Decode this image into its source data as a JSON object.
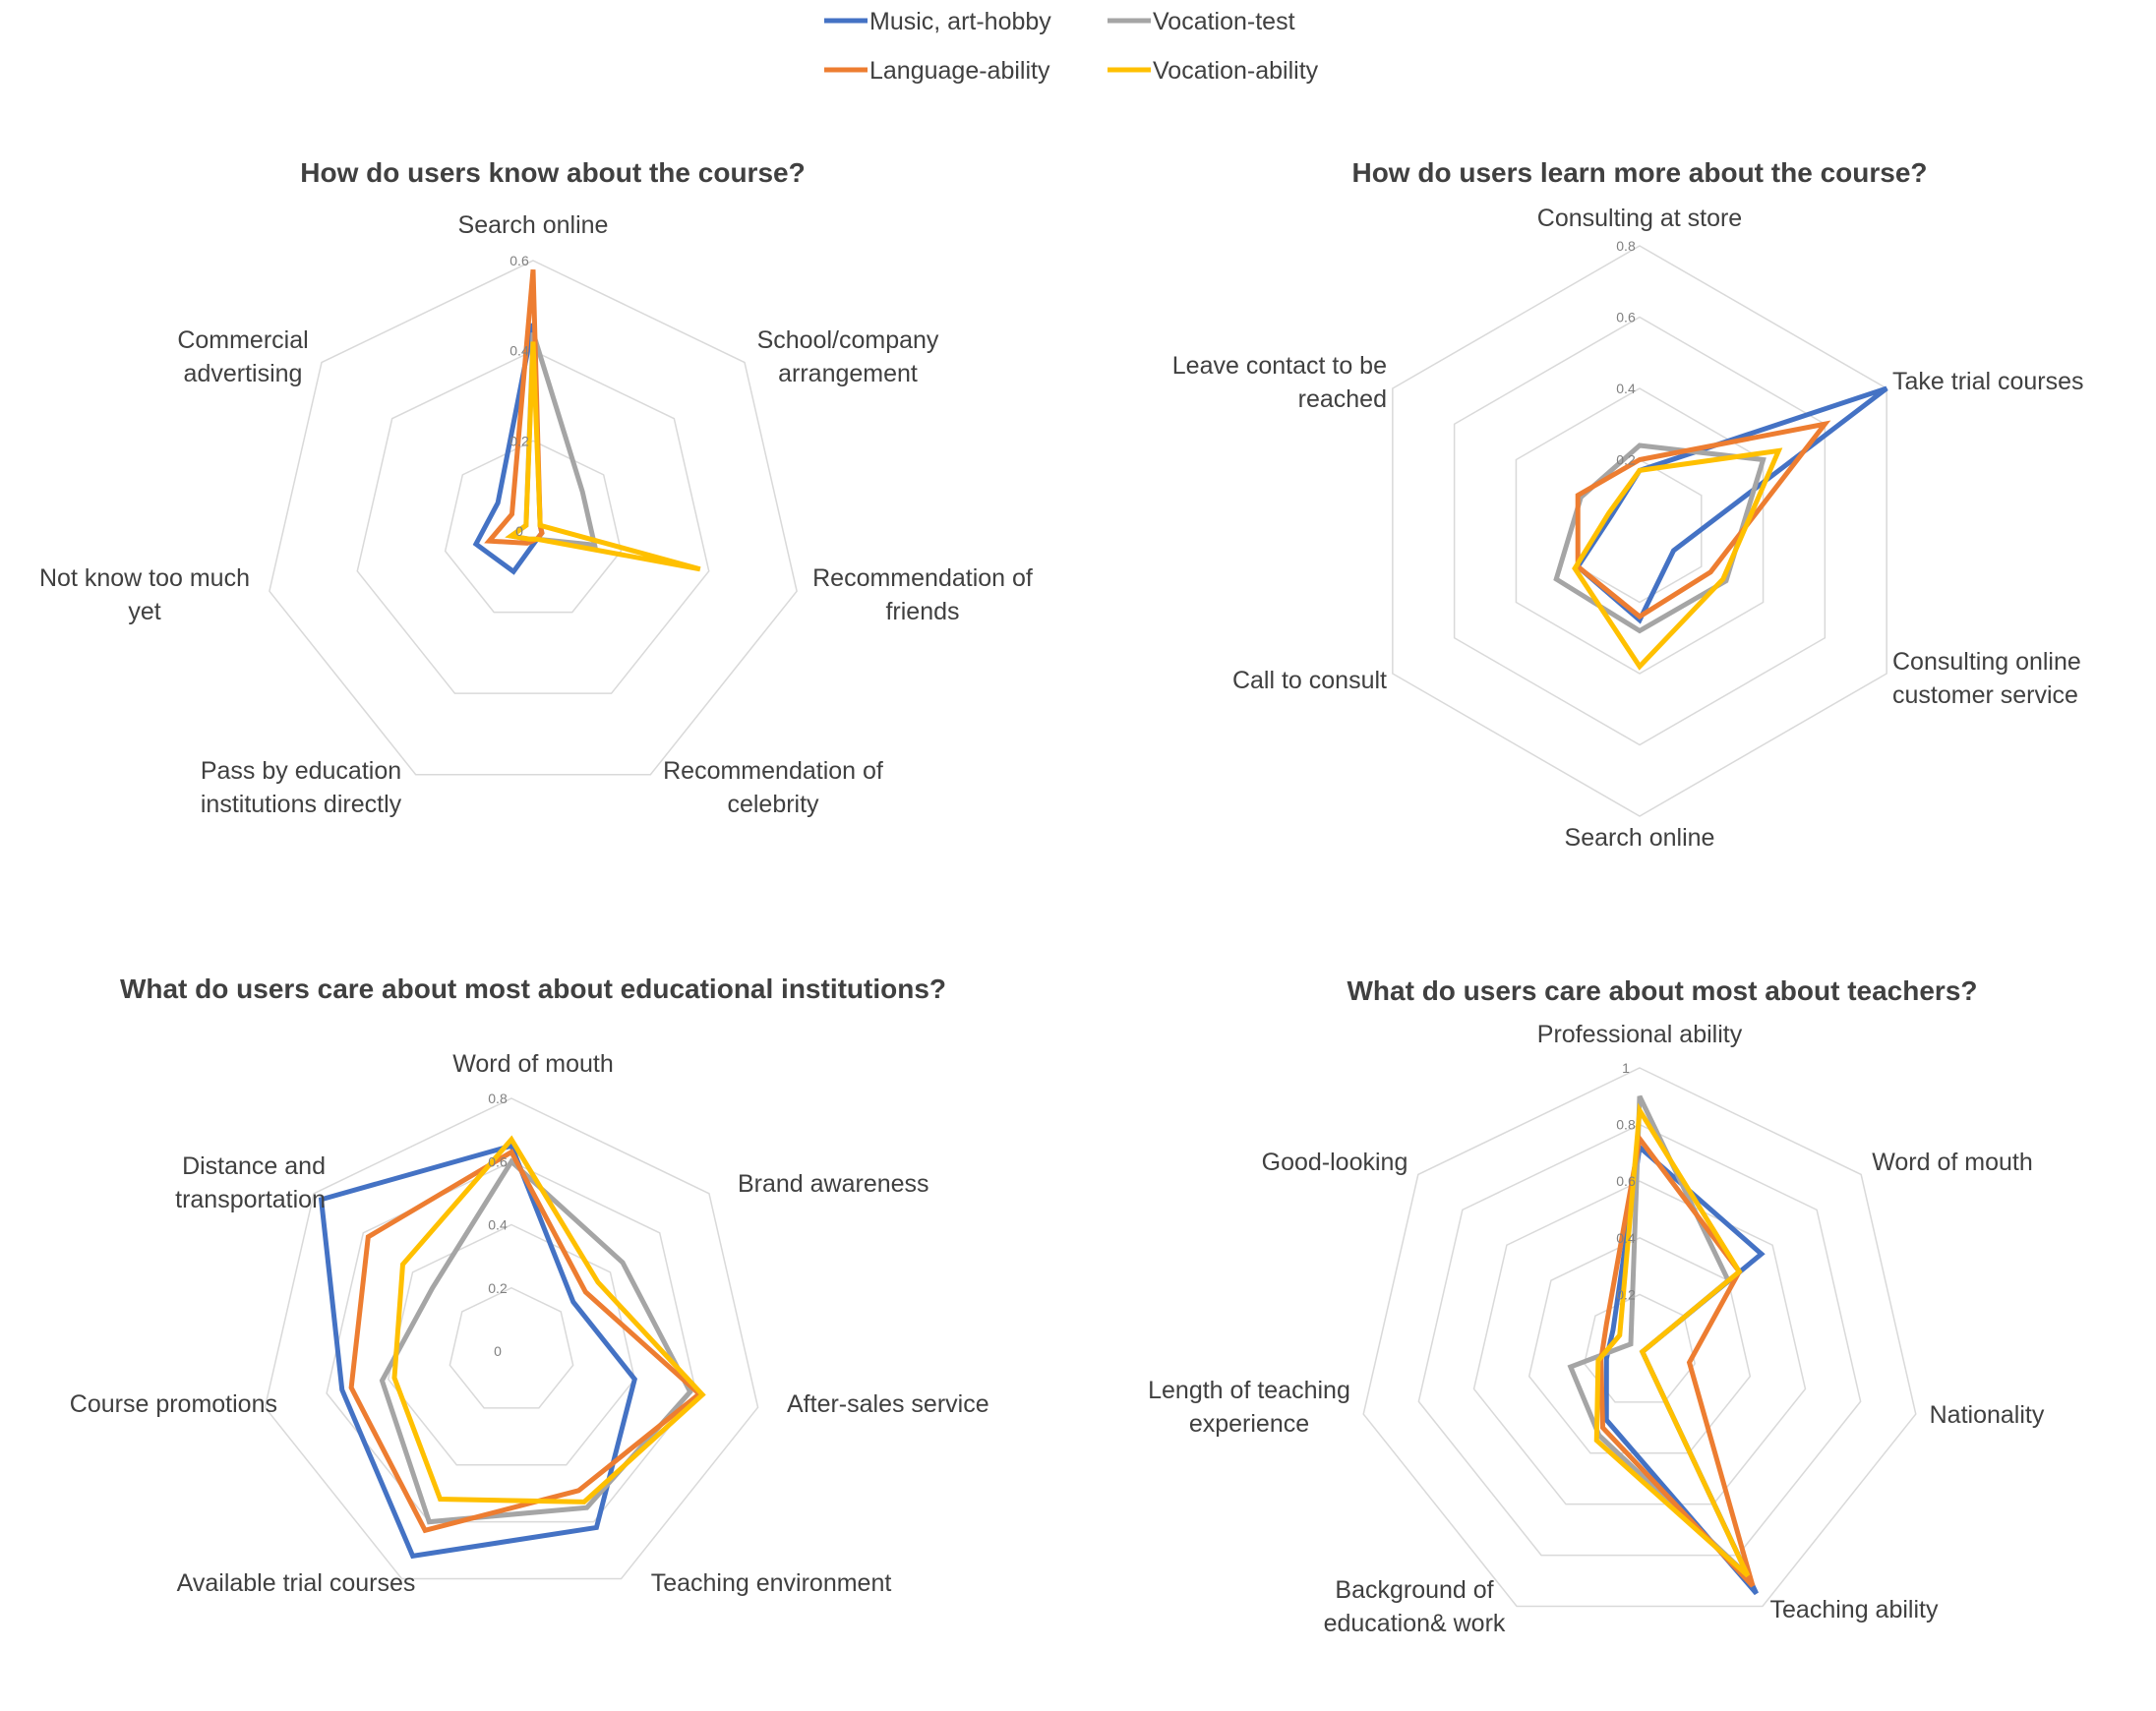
{
  "legend": [
    {
      "name": "Music, art-hobby",
      "color": "#4472C4"
    },
    {
      "name": "Vocation-test",
      "color": "#A5A5A5"
    },
    {
      "name": "Language-ability",
      "color": "#ED7D31"
    },
    {
      "name": "Vocation-ability",
      "color": "#FFC000"
    }
  ],
  "chart_data": [
    {
      "type": "radar",
      "title": "How do users know about the course?",
      "categories": [
        "Search online",
        "School/company\narrangement",
        "Recommendation of\nfriends",
        "Recommendation of\ncelebrity",
        "Pass by education\ninstitutions directly",
        "Not know too much\nyet",
        "Commercial\nadvertising"
      ],
      "rmax": 0.6,
      "ticks": [
        0,
        0.2,
        0.4,
        0.6
      ],
      "tick_labels": [
        "0",
        "0.2",
        "0.4",
        "0.6"
      ],
      "series": [
        {
          "name": "Music, art-hobby",
          "color": "#4472C4",
          "values": [
            0.46,
            0.02,
            0.02,
            0.02,
            0.1,
            0.13,
            0.1
          ]
        },
        {
          "name": "Vocation-test",
          "color": "#A5A5A5",
          "values": [
            0.44,
            0.14,
            0.14,
            0.02,
            0.02,
            0.05,
            0.02
          ]
        },
        {
          "name": "Language-ability",
          "color": "#ED7D31",
          "values": [
            0.58,
            0.02,
            0.02,
            0.02,
            0.03,
            0.1,
            0.06
          ]
        },
        {
          "name": "Vocation-ability",
          "color": "#FFC000",
          "values": [
            0.42,
            0.02,
            0.38,
            0.02,
            0.02,
            0.05,
            0.02
          ]
        }
      ]
    },
    {
      "type": "radar",
      "title": "How do users learn more about the course?",
      "categories": [
        "Consulting at store",
        "Take trial courses",
        "Consulting online\ncustomer service",
        "Search online",
        "Call to consult",
        "Leave contact to be\nreached"
      ],
      "rmax": 0.8,
      "ticks": [
        0,
        0.2,
        0.4,
        0.6,
        0.8
      ],
      "tick_labels": [
        "",
        "0.2",
        "0.4",
        "0.6",
        "0.8"
      ],
      "series": [
        {
          "name": "Music, art-hobby",
          "color": "#4472C4",
          "values": [
            0.17,
            0.8,
            0.11,
            0.25,
            0.2,
            0.09
          ]
        },
        {
          "name": "Vocation-test",
          "color": "#A5A5A5",
          "values": [
            0.24,
            0.4,
            0.28,
            0.28,
            0.27,
            0.19
          ]
        },
        {
          "name": "Language-ability",
          "color": "#ED7D31",
          "values": [
            0.2,
            0.6,
            0.23,
            0.24,
            0.2,
            0.2
          ]
        },
        {
          "name": "Vocation-ability",
          "color": "#FFC000",
          "values": [
            0.17,
            0.45,
            0.27,
            0.38,
            0.21,
            0.1
          ]
        }
      ]
    },
    {
      "type": "radar",
      "title": "What do users care about most about educational institutions?",
      "categories": [
        "Word of mouth",
        "Brand awareness",
        "After-sales service",
        "Teaching environment",
        "Available trial courses",
        "Course promotions",
        "Distance and\ntransportation"
      ],
      "rmax": 0.8,
      "ticks": [
        0,
        0.2,
        0.4,
        0.6,
        0.8
      ],
      "tick_labels": [
        "0",
        "0.2",
        "0.4",
        "0.6",
        "0.8"
      ],
      "series": [
        {
          "name": "Music, art-hobby",
          "color": "#4472C4",
          "values": [
            0.65,
            0.25,
            0.4,
            0.62,
            0.72,
            0.55,
            0.77
          ]
        },
        {
          "name": "Vocation-test",
          "color": "#A5A5A5",
          "values": [
            0.6,
            0.45,
            0.58,
            0.55,
            0.6,
            0.42,
            0.32
          ]
        },
        {
          "name": "Language-ability",
          "color": "#ED7D31",
          "values": [
            0.63,
            0.3,
            0.61,
            0.49,
            0.63,
            0.52,
            0.58
          ]
        },
        {
          "name": "Vocation-ability",
          "color": "#FFC000",
          "values": [
            0.67,
            0.35,
            0.62,
            0.53,
            0.52,
            0.38,
            0.44
          ]
        }
      ]
    },
    {
      "type": "radar",
      "title": "What do users care about most about teachers?",
      "categories": [
        "Professional ability",
        "Word of mouth",
        "Nationality",
        "Teaching ability",
        "Background of\neducation& work",
        "Length of teaching\nexperience",
        "Good-looking"
      ],
      "rmax": 1.0,
      "ticks": [
        0,
        0.2,
        0.4,
        0.6,
        0.8,
        1.0
      ],
      "tick_labels": [
        "",
        "0.2",
        "0.4",
        "0.6",
        "0.8",
        "1"
      ],
      "series": [
        {
          "name": "Music, art-hobby",
          "color": "#4472C4",
          "values": [
            0.72,
            0.55,
            0.01,
            0.95,
            0.27,
            0.12,
            0.12
          ]
        },
        {
          "name": "Vocation-test",
          "color": "#A5A5A5",
          "values": [
            0.9,
            0.4,
            0.01,
            0.88,
            0.33,
            0.25,
            0.04
          ]
        },
        {
          "name": "Language-ability",
          "color": "#ED7D31",
          "values": [
            0.75,
            0.45,
            0.18,
            0.92,
            0.3,
            0.14,
            0.15
          ]
        },
        {
          "name": "Vocation-ability",
          "color": "#FFC000",
          "values": [
            0.85,
            0.45,
            0.01,
            0.88,
            0.35,
            0.15,
            0.09
          ]
        }
      ]
    }
  ]
}
